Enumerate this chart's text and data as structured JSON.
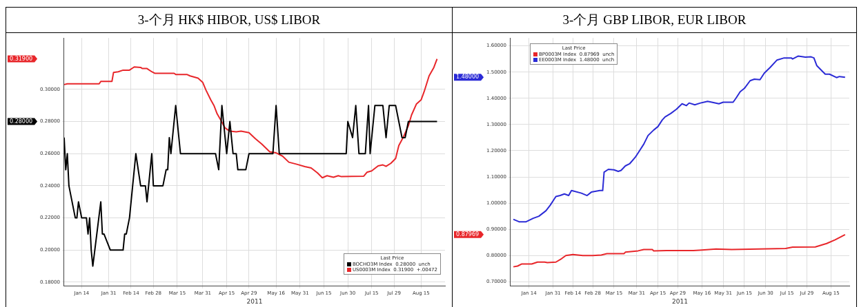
{
  "chart_data": [
    {
      "type": "line",
      "title": "3-个月  HK$ HIBOR, US$ LIBOR",
      "xlabel": "2011",
      "legend_title": "Last Price",
      "legend": "bottom right",
      "grid": true,
      "xlim": [
        "2011-01-03",
        "2011-08-30"
      ],
      "xticks": [
        {
          "value": "2011-01-14",
          "label": "Jan 14"
        },
        {
          "value": "2011-01-31",
          "label": "Jan 31"
        },
        {
          "value": "2011-02-14",
          "label": "Feb 14"
        },
        {
          "value": "2011-02-28",
          "label": "Feb 28"
        },
        {
          "value": "2011-03-15",
          "label": "Mar 15"
        },
        {
          "value": "2011-03-31",
          "label": "Mar 31"
        },
        {
          "value": "2011-04-15",
          "label": "Apr 15"
        },
        {
          "value": "2011-04-29",
          "label": "Apr 29"
        },
        {
          "value": "2011-05-16",
          "label": "May 16"
        },
        {
          "value": "2011-05-31",
          "label": "May 31"
        },
        {
          "value": "2011-06-15",
          "label": "Jun 15"
        },
        {
          "value": "2011-06-30",
          "label": "Jun 30"
        },
        {
          "value": "2011-07-15",
          "label": "Jul 15"
        },
        {
          "value": "2011-07-29",
          "label": "Jul 29"
        },
        {
          "value": "2011-08-15",
          "label": "Aug 15"
        }
      ],
      "ylim": [
        0.1775,
        0.332
      ],
      "yticks": [
        {
          "value": 0.18,
          "label": "0.18000"
        },
        {
          "value": 0.2,
          "label": "0.20000"
        },
        {
          "value": 0.22,
          "label": "0.22000"
        },
        {
          "value": 0.24,
          "label": "0.24000"
        },
        {
          "value": 0.26,
          "label": "0.26000"
        },
        {
          "value": 0.28,
          "label": "0.28000"
        },
        {
          "value": 0.3,
          "label": "0.30000"
        }
      ],
      "series": [
        {
          "name": "BOCHO3M Index  0.28000  unch",
          "color": "#000000",
          "x": [
            "2011-01-03",
            "2011-01-04",
            "2011-01-05",
            "2011-01-06",
            "2011-01-10",
            "2011-01-11",
            "2011-01-12",
            "2011-01-14",
            "2011-01-17",
            "2011-01-18",
            "2011-01-19",
            "2011-01-20",
            "2011-01-21",
            "2011-01-26",
            "2011-01-27",
            "2011-01-28",
            "2011-02-01",
            "2011-02-09",
            "2011-02-10",
            "2011-02-11",
            "2011-02-13",
            "2011-02-15",
            "2011-02-17",
            "2011-02-20",
            "2011-02-23",
            "2011-02-24",
            "2011-02-27",
            "2011-02-28",
            "2011-03-06",
            "2011-03-08",
            "2011-03-09",
            "2011-03-10",
            "2011-03-11",
            "2011-03-14",
            "2011-03-17",
            "2011-04-08",
            "2011-04-10",
            "2011-04-12",
            "2011-04-15",
            "2011-04-17",
            "2011-04-19",
            "2011-04-21",
            "2011-04-22",
            "2011-04-27",
            "2011-04-29",
            "2011-05-14",
            "2011-05-16",
            "2011-05-18",
            "2011-06-29",
            "2011-06-30",
            "2011-07-03",
            "2011-07-05",
            "2011-07-07",
            "2011-07-11",
            "2011-07-13",
            "2011-07-14",
            "2011-07-17",
            "2011-07-22",
            "2011-07-24",
            "2011-07-26",
            "2011-07-30",
            "2011-08-03",
            "2011-08-05",
            "2011-08-07",
            "2011-08-25"
          ],
          "values": [
            0.27,
            0.25,
            0.26,
            0.24,
            0.22,
            0.22,
            0.23,
            0.22,
            0.22,
            0.21,
            0.22,
            0.2,
            0.19,
            0.23,
            0.21,
            0.21,
            0.2,
            0.2,
            0.21,
            0.21,
            0.22,
            0.24,
            0.26,
            0.24,
            0.24,
            0.23,
            0.26,
            0.24,
            0.24,
            0.25,
            0.25,
            0.27,
            0.26,
            0.29,
            0.26,
            0.26,
            0.25,
            0.29,
            0.26,
            0.28,
            0.26,
            0.26,
            0.25,
            0.25,
            0.26,
            0.26,
            0.29,
            0.26,
            0.26,
            0.28,
            0.27,
            0.29,
            0.26,
            0.26,
            0.29,
            0.26,
            0.29,
            0.29,
            0.27,
            0.29,
            0.29,
            0.27,
            0.27,
            0.28,
            0.28
          ]
        },
        {
          "name": "US0003M Index  0.31900  +.00472",
          "color": "#e8262a",
          "x": [
            "2011-01-03",
            "2011-01-05",
            "2011-01-25",
            "2011-01-26",
            "2011-02-02",
            "2011-02-03",
            "2011-02-06",
            "2011-02-09",
            "2011-02-13",
            "2011-02-16",
            "2011-02-20",
            "2011-02-21",
            "2011-02-24",
            "2011-02-27",
            "2011-03-01",
            "2011-03-13",
            "2011-03-14",
            "2011-03-21",
            "2011-03-23",
            "2011-03-28",
            "2011-03-31",
            "2011-04-02",
            "2011-04-05",
            "2011-04-07",
            "2011-04-09",
            "2011-04-11",
            "2011-04-14",
            "2011-04-17",
            "2011-04-21",
            "2011-04-24",
            "2011-04-29",
            "2011-05-03",
            "2011-05-07",
            "2011-05-12",
            "2011-05-16",
            "2011-05-20",
            "2011-05-24",
            "2011-05-29",
            "2011-06-03",
            "2011-06-07",
            "2011-06-11",
            "2011-06-14",
            "2011-06-17",
            "2011-06-21",
            "2011-06-24",
            "2011-06-26",
            "2011-07-10",
            "2011-07-12",
            "2011-07-15",
            "2011-07-19",
            "2011-07-22",
            "2011-07-24",
            "2011-07-27",
            "2011-07-30",
            "2011-08-01",
            "2011-08-04",
            "2011-08-07",
            "2011-08-09",
            "2011-08-12",
            "2011-08-15",
            "2011-08-17",
            "2011-08-20",
            "2011-08-23",
            "2011-08-25"
          ],
          "values": [
            0.303,
            0.3035,
            0.3035,
            0.305,
            0.305,
            0.3106,
            0.311,
            0.312,
            0.312,
            0.314,
            0.3137,
            0.313,
            0.313,
            0.311,
            0.31,
            0.31,
            0.3093,
            0.3093,
            0.3084,
            0.307,
            0.3043,
            0.2996,
            0.2935,
            0.29,
            0.2848,
            0.2814,
            0.276,
            0.274,
            0.2736,
            0.274,
            0.2731,
            0.2693,
            0.266,
            0.2612,
            0.2605,
            0.2585,
            0.2547,
            0.2534,
            0.252,
            0.2511,
            0.248,
            0.245,
            0.2463,
            0.2453,
            0.2463,
            0.2457,
            0.246,
            0.2484,
            0.2493,
            0.2524,
            0.253,
            0.2521,
            0.254,
            0.257,
            0.265,
            0.2706,
            0.2774,
            0.2841,
            0.2908,
            0.2935,
            0.2989,
            0.3084,
            0.3137,
            0.319
          ]
        }
      ],
      "annotations": [
        "0.28000",
        "0.31900"
      ]
    },
    {
      "type": "line",
      "title": "3-个月  GBP LIBOR, EUR LIBOR",
      "xlabel": "2011",
      "legend_title": "Last Price",
      "legend": "top left",
      "grid": true,
      "xlim": [
        "2011-01-01",
        "2011-08-28"
      ],
      "xticks": [
        {
          "value": "2011-01-14",
          "label": "Jan 14"
        },
        {
          "value": "2011-01-31",
          "label": "Jan 31"
        },
        {
          "value": "2011-02-14",
          "label": "Feb 14"
        },
        {
          "value": "2011-02-28",
          "label": "Feb 28"
        },
        {
          "value": "2011-03-15",
          "label": "Mar 15"
        },
        {
          "value": "2011-03-31",
          "label": "Mar 31"
        },
        {
          "value": "2011-04-15",
          "label": "Apr 15"
        },
        {
          "value": "2011-04-29",
          "label": "Apr 29"
        },
        {
          "value": "2011-05-16",
          "label": "May 16"
        },
        {
          "value": "2011-05-31",
          "label": "May 31"
        },
        {
          "value": "2011-06-15",
          "label": "Jun 15"
        },
        {
          "value": "2011-06-30",
          "label": "Jun 30"
        },
        {
          "value": "2011-07-15",
          "label": "Jul 15"
        },
        {
          "value": "2011-07-29",
          "label": "Jul 29"
        },
        {
          "value": "2011-08-15",
          "label": "Aug 15"
        }
      ],
      "ylim": [
        0.683,
        1.63
      ],
      "yticks": [
        {
          "value": 0.7,
          "label": "0.70000"
        },
        {
          "value": 0.8,
          "label": "0.80000"
        },
        {
          "value": 0.9,
          "label": "0.90000"
        },
        {
          "value": 1.0,
          "label": "1.00000"
        },
        {
          "value": 1.1,
          "label": "1.10000"
        },
        {
          "value": 1.2,
          "label": "1.20000"
        },
        {
          "value": 1.3,
          "label": "1.30000"
        },
        {
          "value": 1.4,
          "label": "1.40000"
        },
        {
          "value": 1.5,
          "label": "1.50000"
        },
        {
          "value": 1.6,
          "label": "1.60000"
        }
      ],
      "series": [
        {
          "name": "BP0003M Index  0.87969  unch",
          "color": "#e8262a",
          "x": [
            "2011-01-03",
            "2011-01-06",
            "2011-01-09",
            "2011-01-16",
            "2011-01-20",
            "2011-01-25",
            "2011-01-27",
            "2011-02-02",
            "2011-02-06",
            "2011-02-09",
            "2011-02-14",
            "2011-02-21",
            "2011-02-28",
            "2011-03-06",
            "2011-03-10",
            "2011-03-22",
            "2011-03-23",
            "2011-04-01",
            "2011-04-05",
            "2011-04-11",
            "2011-04-12",
            "2011-04-21",
            "2011-05-10",
            "2011-05-16",
            "2011-05-26",
            "2011-06-06",
            "2011-06-25",
            "2011-07-14",
            "2011-07-19",
            "2011-08-04",
            "2011-08-12",
            "2011-08-18",
            "2011-08-25"
          ],
          "values": [
            0.757,
            0.76,
            0.768,
            0.768,
            0.775,
            0.775,
            0.773,
            0.775,
            0.788,
            0.8,
            0.804,
            0.8,
            0.8,
            0.802,
            0.807,
            0.807,
            0.813,
            0.818,
            0.823,
            0.823,
            0.818,
            0.819,
            0.819,
            0.821,
            0.825,
            0.823,
            0.825,
            0.827,
            0.832,
            0.833,
            0.846,
            0.86,
            0.88
          ]
        },
        {
          "name": "EE0003M Index  1.48000  unch",
          "color": "#2b2bd6",
          "x": [
            "2011-01-03",
            "2011-01-07",
            "2011-01-12",
            "2011-01-17",
            "2011-01-21",
            "2011-01-26",
            "2011-01-29",
            "2011-02-02",
            "2011-02-05",
            "2011-02-08",
            "2011-02-11",
            "2011-02-13",
            "2011-02-20",
            "2011-02-24",
            "2011-02-27",
            "2011-03-05",
            "2011-03-07",
            "2011-03-08",
            "2011-03-11",
            "2011-03-15",
            "2011-03-18",
            "2011-03-20",
            "2011-03-23",
            "2011-03-26",
            "2011-03-30",
            "2011-04-02",
            "2011-04-05",
            "2011-04-08",
            "2011-04-12",
            "2011-04-15",
            "2011-04-18",
            "2011-04-20",
            "2011-04-24",
            "2011-04-28",
            "2011-05-02",
            "2011-05-05",
            "2011-05-07",
            "2011-05-11",
            "2011-05-15",
            "2011-05-20",
            "2011-05-23",
            "2011-05-28",
            "2011-05-31",
            "2011-06-07",
            "2011-06-09",
            "2011-06-12",
            "2011-06-15",
            "2011-06-19",
            "2011-06-22",
            "2011-06-26",
            "2011-06-29",
            "2011-07-03",
            "2011-07-08",
            "2011-07-13",
            "2011-07-18",
            "2011-07-19",
            "2011-07-23",
            "2011-07-28",
            "2011-08-01",
            "2011-08-03",
            "2011-08-05",
            "2011-08-11",
            "2011-08-14",
            "2011-08-19",
            "2011-08-21",
            "2011-08-25"
          ],
          "values": [
            0.938,
            0.929,
            0.929,
            0.942,
            0.95,
            0.971,
            0.992,
            1.025,
            1.029,
            1.035,
            1.029,
            1.048,
            1.038,
            1.029,
            1.042,
            1.048,
            1.048,
            1.118,
            1.129,
            1.127,
            1.121,
            1.125,
            1.142,
            1.15,
            1.175,
            1.2,
            1.225,
            1.258,
            1.279,
            1.292,
            1.317,
            1.329,
            1.342,
            1.358,
            1.379,
            1.372,
            1.382,
            1.375,
            1.382,
            1.388,
            1.385,
            1.379,
            1.385,
            1.385,
            1.4,
            1.425,
            1.438,
            1.467,
            1.473,
            1.471,
            1.496,
            1.517,
            1.546,
            1.554,
            1.554,
            1.55,
            1.561,
            1.557,
            1.558,
            1.554,
            1.525,
            1.492,
            1.492,
            1.479,
            1.483,
            1.48
          ]
        }
      ],
      "annotations": [
        "0.87969",
        "1.48000"
      ]
    }
  ]
}
